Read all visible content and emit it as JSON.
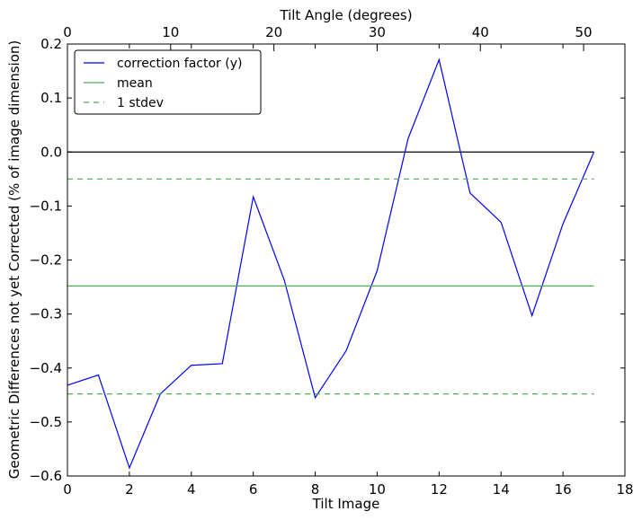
{
  "chart_data": {
    "type": "line",
    "title": "",
    "xlabel": "Tilt Image",
    "ylabel": "Geometric Differences not yet Corrected (% of image dimension)",
    "x2label": "Tilt Angle (degrees)",
    "xlim": [
      0,
      18
    ],
    "ylim": [
      -0.6,
      0.2
    ],
    "x2lim": [
      0,
      54
    ],
    "xticks": [
      0,
      2,
      4,
      6,
      8,
      10,
      12,
      14,
      16,
      18
    ],
    "yticks": [
      -0.6,
      -0.5,
      -0.4,
      -0.3,
      -0.2,
      -0.1,
      0.0,
      0.1,
      0.2
    ],
    "ytick_labels": [
      "−0.6",
      "−0.5",
      "−0.4",
      "−0.3",
      "−0.2",
      "−0.1",
      "0.0",
      "0.1",
      "0.2"
    ],
    "x2ticks": [
      0,
      10,
      20,
      30,
      40,
      50
    ],
    "grid": false,
    "legend_position": "top-left",
    "series": [
      {
        "name": "correction factor (y)",
        "color": "#0000ff",
        "style": "solid",
        "x": [
          0,
          1,
          2,
          3,
          4,
          5,
          6,
          7,
          8,
          9,
          10,
          11,
          12,
          13,
          14,
          15,
          16,
          17
        ],
        "values": [
          -0.432,
          -0.413,
          -0.585,
          -0.448,
          -0.395,
          -0.392,
          -0.083,
          -0.237,
          -0.455,
          -0.368,
          -0.22,
          0.025,
          0.171,
          -0.076,
          -0.13,
          -0.303,
          -0.133,
          0.0
        ]
      },
      {
        "name": "mean",
        "color": "#4caf50",
        "style": "solid",
        "x": [
          0,
          17
        ],
        "values": [
          -0.248,
          -0.248
        ]
      },
      {
        "name": "1 stdev",
        "color": "#4caf50",
        "style": "dashed",
        "x": [
          0,
          17,
          null,
          0,
          17
        ],
        "values": [
          -0.05,
          -0.05,
          null,
          -0.448,
          -0.448
        ]
      }
    ],
    "reference_line": {
      "y": 0.0,
      "x": [
        0,
        17
      ],
      "color": "#000000"
    }
  }
}
